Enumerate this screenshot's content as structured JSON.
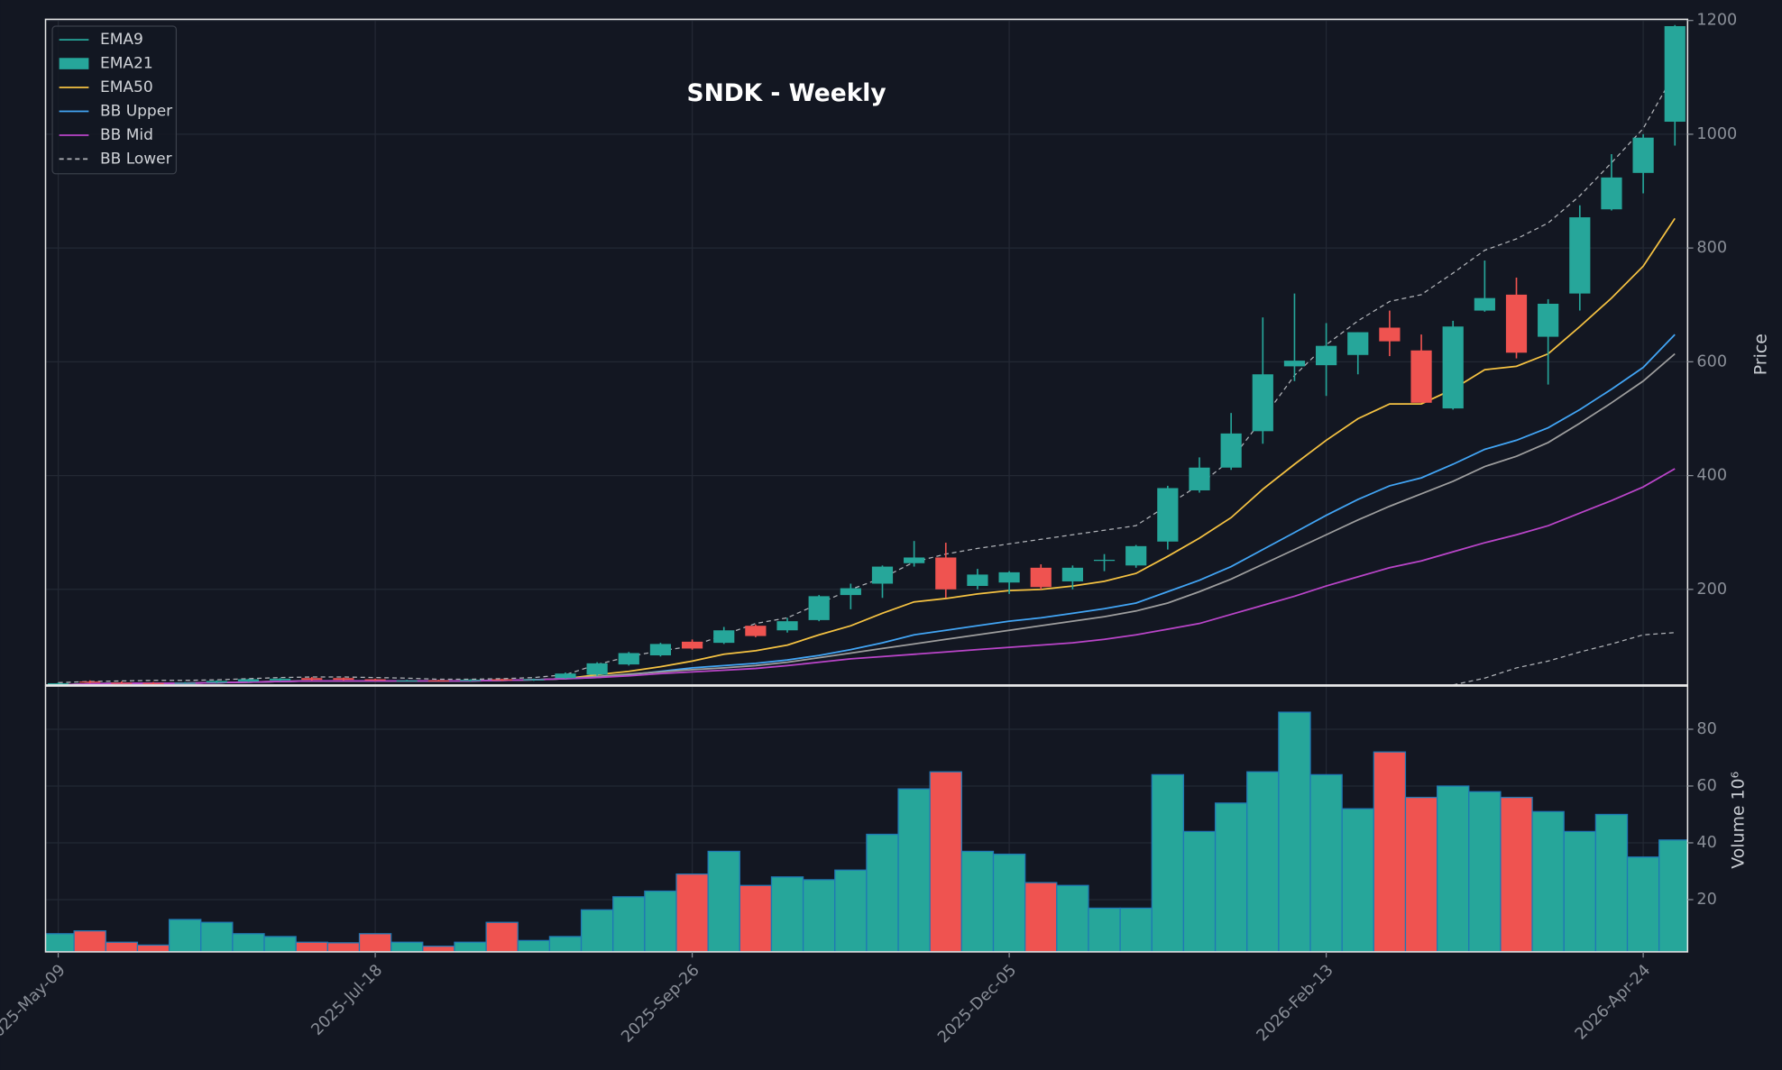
{
  "chart_data": {
    "type": "candlestick",
    "title": "SNDK - Weekly",
    "categories": [
      "2025-May-09",
      null,
      null,
      null,
      null,
      null,
      null,
      null,
      null,
      null,
      "2025-Jul-18",
      null,
      null,
      null,
      null,
      null,
      null,
      null,
      null,
      null,
      "2025-Sep-26",
      null,
      null,
      null,
      null,
      null,
      null,
      null,
      null,
      null,
      "2025-Dec-05",
      null,
      null,
      null,
      null,
      null,
      null,
      null,
      null,
      null,
      "2026-Feb-13",
      null,
      null,
      null,
      null,
      null,
      null,
      null,
      null,
      null,
      "2026-Apr-24",
      null
    ],
    "xlim": [
      -0.4,
      51.4
    ],
    "open": [
      30,
      38,
      36,
      35.5,
      35,
      36,
      38,
      40,
      44,
      44,
      42,
      39,
      40,
      39,
      42,
      40,
      44,
      50,
      68,
      84,
      108,
      106,
      136,
      128,
      146,
      190,
      210,
      246,
      256,
      206,
      212,
      238,
      214,
      250,
      242,
      284,
      374,
      414,
      478,
      592,
      594,
      612,
      660,
      620,
      518,
      690,
      718,
      644,
      720,
      868,
      932,
      1022
    ],
    "high": [
      36,
      40,
      38,
      37,
      37,
      40,
      43,
      44,
      46,
      45,
      43,
      41,
      41,
      42,
      43,
      43,
      54,
      72,
      90,
      106,
      112,
      134,
      138,
      150,
      190,
      210,
      242,
      285,
      282,
      236,
      232,
      244,
      242,
      262,
      278,
      382,
      432,
      510,
      678,
      720,
      668,
      652,
      690,
      648,
      672,
      778,
      748,
      710,
      875,
      965,
      1000,
      1192
    ],
    "low": [
      28,
      35,
      34,
      33,
      34,
      35,
      37,
      39,
      40,
      40,
      39,
      38,
      38,
      38,
      39,
      39,
      43,
      48,
      66,
      82,
      94,
      104,
      116,
      124,
      144,
      165,
      185,
      240,
      185,
      200,
      192,
      200,
      200,
      232,
      238,
      270,
      370,
      410,
      456,
      566,
      540,
      578,
      610,
      528,
      516,
      688,
      606,
      560,
      690,
      866,
      896,
      980
    ],
    "close": [
      35,
      36,
      35,
      35,
      36,
      39,
      42,
      43,
      41,
      41,
      40,
      40,
      39,
      41,
      40,
      42,
      52,
      70,
      88,
      104,
      96,
      128,
      118,
      144,
      188,
      202,
      240,
      256,
      200,
      226,
      230,
      204,
      238,
      252,
      276,
      378,
      414,
      474,
      578,
      602,
      628,
      652,
      636,
      528,
      662,
      712,
      616,
      702,
      854,
      924,
      994,
      1190
    ],
    "up_color": "#26a69a",
    "down_color": "#ef5350",
    "ylim": [
      32,
      1202
    ],
    "yticks": [
      200,
      400,
      600,
      800,
      1000,
      1200
    ],
    "y_label": "Price",
    "grid": true,
    "overlays": [
      {
        "color": "#f5c242",
        "dash": false,
        "values": [
          32,
          34,
          35,
          35,
          35,
          36,
          37,
          38,
          39,
          39,
          39,
          39,
          39,
          39,
          40,
          41,
          43,
          50,
          56,
          64,
          74,
          86,
          92,
          102,
          120,
          136,
          158,
          178,
          184,
          192,
          198,
          200,
          206,
          214,
          228,
          258,
          290,
          326,
          376,
          420,
          462,
          500,
          526,
          526,
          552,
          586,
          592,
          614,
          662,
          712,
          768,
          852
        ]
      },
      {
        "color": "#42a5f5",
        "dash": false,
        "values": [
          32,
          34,
          35,
          35,
          35,
          36,
          37,
          38,
          39,
          39,
          39,
          39,
          39,
          39,
          40,
          41,
          43,
          45,
          50,
          56,
          62,
          66,
          70,
          76,
          84,
          94,
          106,
          120,
          128,
          136,
          144,
          150,
          158,
          166,
          176,
          196,
          216,
          240,
          270,
          300,
          330,
          358,
          382,
          396,
          420,
          446,
          462,
          484,
          516,
          552,
          590,
          648
        ]
      },
      {
        "color": "#9e9e9e",
        "dash": false,
        "values": [
          32,
          34,
          35,
          35,
          35,
          36,
          37,
          38,
          39,
          39,
          39,
          39,
          39,
          39,
          40,
          41,
          43,
          47,
          51,
          55,
          59,
          62,
          66,
          72,
          80,
          88,
          96,
          104,
          112,
          120,
          128,
          136,
          144,
          152,
          162,
          176,
          196,
          218,
          244,
          270,
          296,
          322,
          346,
          368,
          390,
          416,
          434,
          458,
          492,
          528,
          566,
          614
        ]
      },
      {
        "color": "#ba45c9",
        "dash": false,
        "values": [
          32,
          34,
          35,
          35,
          35,
          36,
          37,
          38,
          39,
          39,
          39,
          39,
          39,
          39,
          40,
          41,
          43,
          45,
          48,
          52,
          55,
          58,
          61,
          66,
          72,
          78,
          82,
          86,
          90,
          94,
          98,
          102,
          106,
          112,
          120,
          130,
          140,
          156,
          172,
          188,
          206,
          222,
          238,
          250,
          266,
          282,
          296,
          312,
          334,
          356,
          380,
          412
        ]
      },
      {
        "color": "#b0b3b8",
        "dash": true,
        "values": [
          36,
          38,
          39,
          40,
          40,
          41,
          43,
          45,
          46,
          46,
          45,
          44,
          42,
          42,
          43,
          45,
          50,
          68,
          82,
          92,
          100,
          120,
          140,
          150,
          175,
          200,
          220,
          248,
          262,
          272,
          280,
          288,
          296,
          304,
          312,
          348,
          384,
          428,
          500,
          576,
          630,
          672,
          706,
          718,
          756,
          796,
          816,
          844,
          892,
          950,
          1010,
          1108
        ]
      },
      {
        "color": "#b0b3b8",
        "dash": true,
        "values": [
          null,
          null,
          null,
          null,
          null,
          null,
          null,
          null,
          null,
          null,
          null,
          null,
          null,
          null,
          null,
          null,
          null,
          null,
          null,
          null,
          null,
          null,
          null,
          null,
          null,
          null,
          null,
          null,
          null,
          null,
          null,
          null,
          null,
          null,
          null,
          null,
          null,
          null,
          null,
          null,
          null,
          null,
          null,
          null,
          32,
          44,
          62,
          74,
          90,
          104,
          120,
          124
        ]
      }
    ],
    "legend": {
      "position": "upper left",
      "entries": [
        {
          "label": "EMA9",
          "color": "#26a69a",
          "style": "line"
        },
        {
          "label": "EMA21",
          "color": "#26a69a",
          "style": "patch"
        },
        {
          "label": "EMA50",
          "color": "#f5c242",
          "style": "line"
        },
        {
          "label": "BB Upper",
          "color": "#42a5f5",
          "style": "line"
        },
        {
          "label": "BB Mid",
          "color": "#ba45c9",
          "style": "line"
        },
        {
          "label": "BB Lower",
          "color": "#b0b3b8",
          "style": "dashed"
        }
      ]
    },
    "volume": {
      "label": "Volume  10⁶",
      "edge_color": "#1f77b4",
      "values": [
        8,
        9,
        5,
        4,
        13,
        12,
        8,
        7,
        5,
        4.8,
        8,
        5,
        3.6,
        5,
        12,
        5.6,
        7,
        16.4,
        21,
        23,
        29,
        37,
        25,
        28,
        27,
        30.4,
        43,
        59,
        65,
        37,
        36,
        26,
        25,
        17,
        17,
        64,
        44,
        54,
        65,
        86,
        64,
        52,
        72,
        56,
        60,
        58,
        56,
        51,
        44,
        50,
        35,
        41
      ],
      "ylim": [
        1.6,
        95.2
      ],
      "yticks": [
        20,
        40,
        60,
        80
      ]
    }
  }
}
